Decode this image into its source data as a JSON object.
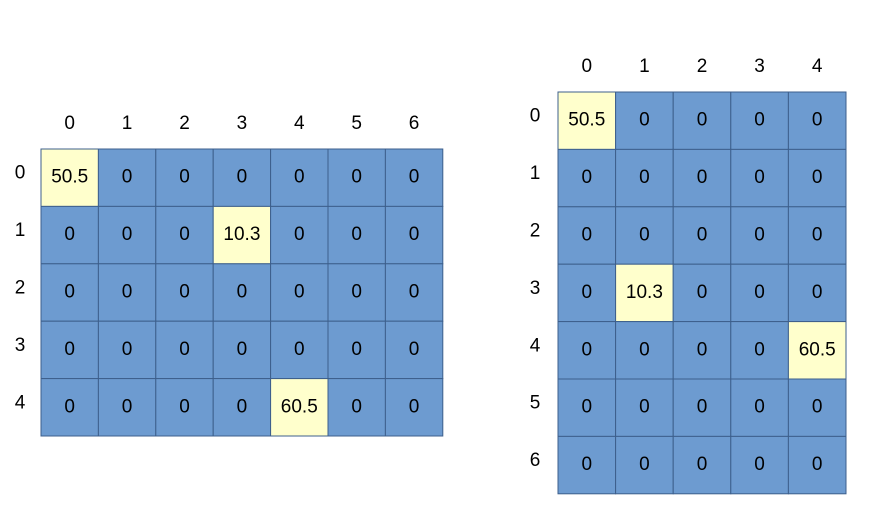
{
  "matrices": [
    {
      "column_labels": [
        0,
        1,
        2,
        3,
        4,
        5,
        6
      ],
      "row_labels": [
        0,
        1,
        2,
        3,
        4
      ],
      "rows": [
        [
          50.5,
          0,
          0,
          0,
          0,
          0,
          0
        ],
        [
          0,
          0,
          0,
          10.3,
          0,
          0,
          0
        ],
        [
          0,
          0,
          0,
          0,
          0,
          0,
          0
        ],
        [
          0,
          0,
          0,
          0,
          0,
          0,
          0
        ],
        [
          0,
          0,
          0,
          0,
          60.5,
          0,
          0
        ]
      ]
    },
    {
      "column_labels": [
        0,
        1,
        2,
        3,
        4
      ],
      "row_labels": [
        0,
        1,
        2,
        3,
        4,
        5,
        6
      ],
      "rows": [
        [
          50.5,
          0,
          0,
          0,
          0
        ],
        [
          0,
          0,
          0,
          0,
          0
        ],
        [
          0,
          0,
          0,
          0,
          0
        ],
        [
          0,
          10.3,
          0,
          0,
          0
        ],
        [
          0,
          0,
          0,
          0,
          60.5
        ],
        [
          0,
          0,
          0,
          0,
          0
        ],
        [
          0,
          0,
          0,
          0,
          0
        ]
      ]
    }
  ]
}
